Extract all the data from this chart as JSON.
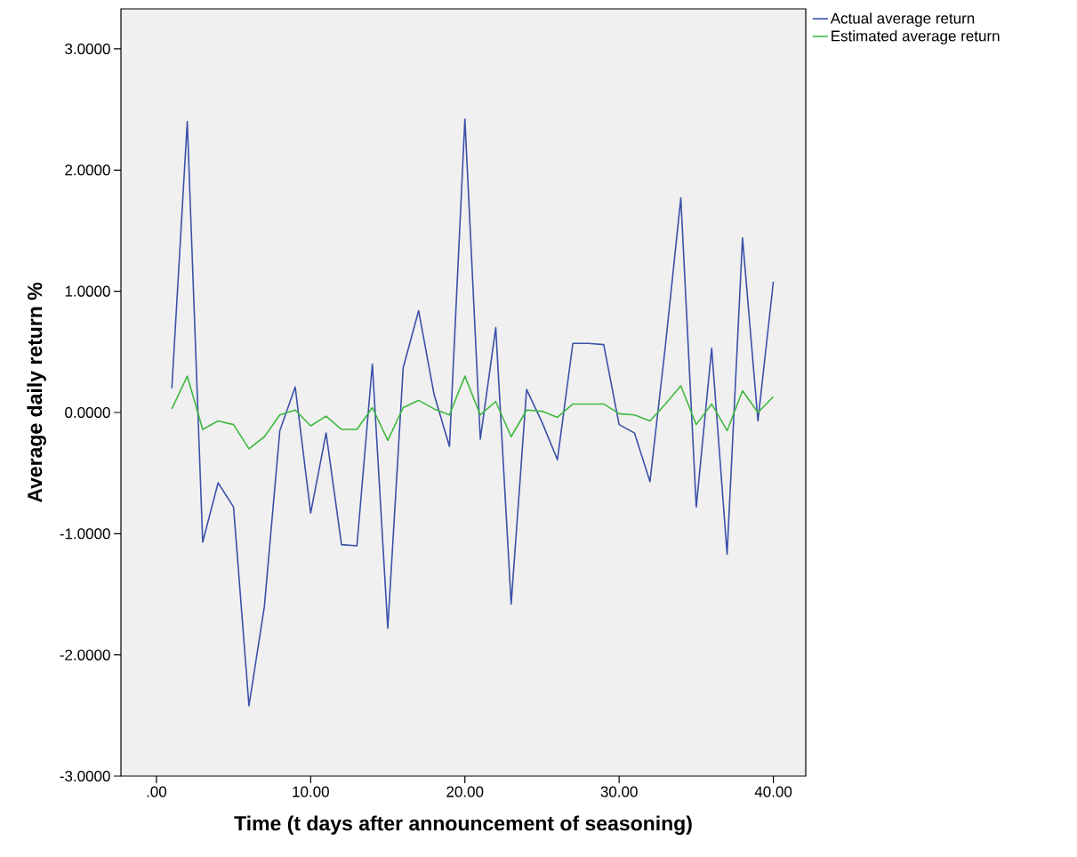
{
  "chart_data": {
    "type": "line",
    "xlabel": "Time (t days after announcement of seasoning)",
    "ylabel": "Average daily return %",
    "x": [
      1,
      2,
      3,
      4,
      5,
      6,
      7,
      8,
      9,
      10,
      11,
      12,
      13,
      14,
      15,
      16,
      17,
      18,
      19,
      20,
      21,
      22,
      23,
      24,
      25,
      26,
      27,
      28,
      29,
      30,
      31,
      32,
      33,
      34,
      35,
      36,
      37,
      38,
      39,
      40
    ],
    "series": [
      {
        "name": "Actual average return",
        "color": "#3b50a8",
        "values": [
          0.2,
          2.4,
          -1.07,
          -0.58,
          -0.78,
          -2.42,
          -1.6,
          -0.15,
          0.21,
          -0.83,
          -0.17,
          -1.09,
          -1.1,
          0.4,
          -1.78,
          0.37,
          0.84,
          0.15,
          -0.28,
          2.42,
          -0.22,
          0.7,
          -1.58,
          0.19,
          -0.08,
          -0.39,
          0.57,
          0.57,
          0.56,
          -0.1,
          -0.17,
          -0.57,
          0.55,
          1.77,
          -0.78,
          0.53,
          -1.17,
          1.44,
          -0.07,
          1.08
        ]
      },
      {
        "name": "Estimated average return",
        "color": "#3fb93f",
        "values": [
          0.03,
          0.3,
          -0.14,
          -0.07,
          -0.1,
          -0.3,
          -0.2,
          -0.02,
          0.02,
          -0.11,
          -0.03,
          -0.14,
          -0.14,
          0.04,
          -0.23,
          0.04,
          0.1,
          0.03,
          -0.02,
          0.3,
          -0.02,
          0.09,
          -0.2,
          0.02,
          0.01,
          -0.04,
          0.07,
          0.07,
          0.07,
          -0.01,
          -0.02,
          -0.07,
          0.07,
          0.22,
          -0.1,
          0.07,
          -0.15,
          0.18,
          0.0,
          0.13
        ]
      }
    ],
    "xlim": [
      -2.3,
      42.1
    ],
    "ylim": [
      -3.0,
      3.33
    ],
    "xticks": [
      {
        "value": 0,
        "label": ".00"
      },
      {
        "value": 10,
        "label": "10.00"
      },
      {
        "value": 20,
        "label": "20.00"
      },
      {
        "value": 30,
        "label": "30.00"
      },
      {
        "value": 40,
        "label": "40.00"
      }
    ],
    "yticks": [
      {
        "value": -3,
        "label": "-3.0000"
      },
      {
        "value": -2,
        "label": "-2.0000"
      },
      {
        "value": -1,
        "label": "-1.0000"
      },
      {
        "value": 0,
        "label": "0.0000"
      },
      {
        "value": 1,
        "label": "1.0000"
      },
      {
        "value": 2,
        "label": "2.0000"
      },
      {
        "value": 3,
        "label": "3.0000"
      }
    ],
    "grid": false,
    "legend": "top right",
    "marker": "none",
    "line_style": "solid"
  }
}
